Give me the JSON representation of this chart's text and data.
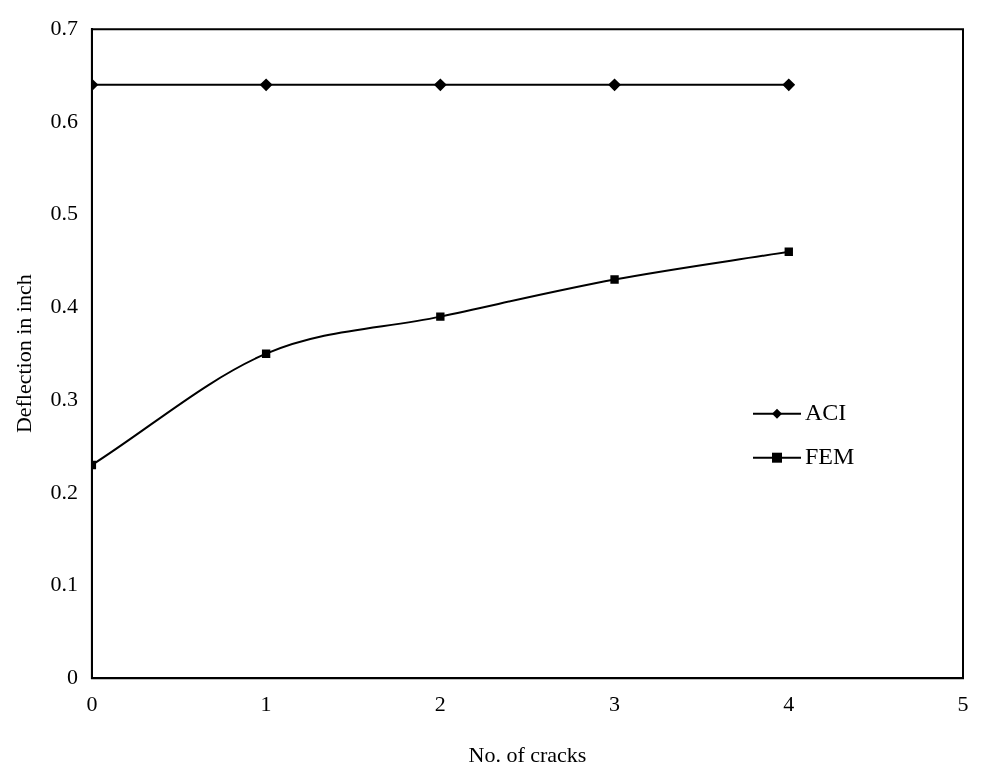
{
  "chart_data": {
    "type": "line",
    "xlabel": "No. of cracks",
    "ylabel": "Deflection in inch",
    "xlim": [
      0,
      5
    ],
    "xticks": [
      0,
      1,
      2,
      3,
      4,
      5
    ],
    "ylim": [
      0,
      0.7
    ],
    "yticks": [
      0,
      0.1,
      0.2,
      0.3,
      0.4,
      0.5,
      0.6,
      0.7
    ],
    "grid": false,
    "legend": "right",
    "series": [
      {
        "name": "ACI",
        "color": "#000000",
        "marker": "diamond",
        "x": [
          0,
          1,
          2,
          3,
          4
        ],
        "values": [
          0.64,
          0.64,
          0.64,
          0.64,
          0.64
        ]
      },
      {
        "name": "FEM",
        "color": "#000000",
        "marker": "square",
        "x": [
          0,
          1,
          2,
          3,
          4
        ],
        "values": [
          0.23,
          0.35,
          0.39,
          0.43,
          0.46
        ]
      }
    ]
  }
}
